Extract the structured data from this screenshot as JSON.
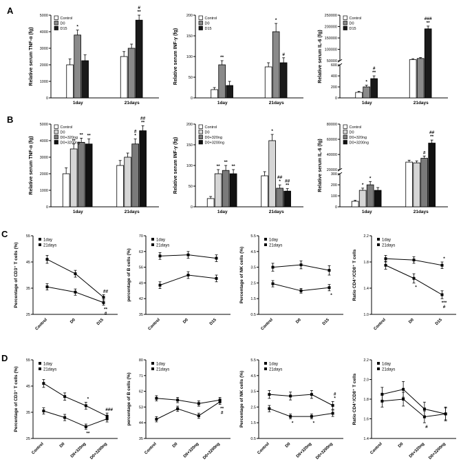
{
  "panels": [
    {
      "label": "A"
    },
    {
      "label": "B"
    },
    {
      "label": "C"
    },
    {
      "label": "D"
    }
  ],
  "chart_data": [
    {
      "panel": "A",
      "type": "bar",
      "ylabel": "Relative serum TNF-α (fg)",
      "categories": [
        "1day",
        "21days"
      ],
      "ylim": [
        0,
        5000
      ],
      "yticks": [
        0,
        1000,
        2000,
        3000,
        4000,
        5000
      ],
      "legend_position": "top-left",
      "series": [
        {
          "name": "Control",
          "color": "#ffffff",
          "values": [
            2000,
            2500
          ],
          "errors": [
            350,
            300
          ],
          "annotations": [
            "",
            ""
          ]
        },
        {
          "name": "D0",
          "color": "#8a8a8a",
          "values": [
            3800,
            3000
          ],
          "errors": [
            300,
            250
          ],
          "annotations": [
            "*",
            ""
          ]
        },
        {
          "name": "D15",
          "color": "#1a1a1a",
          "values": [
            2250,
            4700
          ],
          "errors": [
            350,
            300
          ],
          "annotations": [
            "",
            "#\n**"
          ]
        }
      ]
    },
    {
      "panel": "A",
      "type": "bar",
      "ylabel": "Relative serum INF-γ (fg)",
      "categories": [
        "1day",
        "21days"
      ],
      "ylim": [
        0,
        200
      ],
      "yticks": [
        0,
        50,
        100,
        150,
        200
      ],
      "legend_position": "top-left",
      "series": [
        {
          "name": "Control",
          "color": "#ffffff",
          "values": [
            20,
            75
          ],
          "errors": [
            5,
            10
          ],
          "annotations": [
            "",
            ""
          ]
        },
        {
          "name": "D0",
          "color": "#8a8a8a",
          "values": [
            80,
            160
          ],
          "errors": [
            10,
            20
          ],
          "annotations": [
            "**",
            "*"
          ]
        },
        {
          "name": "D15",
          "color": "#1a1a1a",
          "values": [
            30,
            85
          ],
          "errors": [
            10,
            12
          ],
          "annotations": [
            "",
            "#"
          ]
        }
      ]
    },
    {
      "panel": "A",
      "type": "bar",
      "ylabel": "Relative serum IL-6 (fg)",
      "categories": [
        "1day",
        "21days"
      ],
      "broken_axis": {
        "lower": [
          0,
          600
        ],
        "upper": [
          50000,
          250000
        ],
        "lower_ticks": [
          0,
          200,
          400,
          600
        ],
        "upper_ticks": [
          50000,
          100000,
          150000,
          200000,
          250000
        ],
        "lower_frac": 0.42
      },
      "legend_position": "top-left",
      "series": [
        {
          "name": "Control",
          "color": "#ffffff",
          "values": [
            100,
            55000
          ],
          "errors": [
            20,
            4000
          ],
          "annotations": [
            "",
            ""
          ]
        },
        {
          "name": "D0",
          "color": "#8a8a8a",
          "values": [
            200,
            60000
          ],
          "errors": [
            30,
            4000
          ],
          "annotations": [
            "*",
            ""
          ]
        },
        {
          "name": "D15",
          "color": "#1a1a1a",
          "values": [
            350,
            190000
          ],
          "errors": [
            50,
            12000
          ],
          "annotations": [
            "#\n**",
            "###\n**"
          ]
        }
      ]
    },
    {
      "panel": "B",
      "type": "bar",
      "ylabel": "Relative serum TNF-α (fg)",
      "categories": [
        "1day",
        "21days"
      ],
      "ylim": [
        0,
        5000
      ],
      "yticks": [
        0,
        1000,
        2000,
        3000,
        4000,
        5000
      ],
      "legend_position": "top-left",
      "series": [
        {
          "name": "Control",
          "color": "#ffffff",
          "values": [
            2000,
            2500
          ],
          "errors": [
            350,
            300
          ],
          "annotations": [
            "",
            ""
          ]
        },
        {
          "name": "D0",
          "color": "#d6d6d6",
          "values": [
            3500,
            3000
          ],
          "errors": [
            300,
            250
          ],
          "annotations": [
            "**",
            ""
          ]
        },
        {
          "name": "D0+320ng",
          "color": "#7a7a7a",
          "values": [
            3900,
            3800
          ],
          "errors": [
            250,
            300
          ],
          "annotations": [
            "**",
            "#\n*"
          ]
        },
        {
          "name": "D0+3200ng",
          "color": "#111111",
          "values": [
            3800,
            4600
          ],
          "errors": [
            300,
            300
          ],
          "annotations": [
            "**",
            "##\n**"
          ]
        }
      ]
    },
    {
      "panel": "B",
      "type": "bar",
      "ylabel": "Relative serum INF-γ (fg)",
      "categories": [
        "1day",
        "21days"
      ],
      "ylim": [
        0,
        200
      ],
      "yticks": [
        0,
        50,
        100,
        150,
        200
      ],
      "legend_position": "top-left",
      "series": [
        {
          "name": "Control",
          "color": "#ffffff",
          "values": [
            20,
            75
          ],
          "errors": [
            5,
            10
          ],
          "annotations": [
            "",
            ""
          ]
        },
        {
          "name": "D0",
          "color": "#d6d6d6",
          "values": [
            80,
            160
          ],
          "errors": [
            10,
            15
          ],
          "annotations": [
            "**",
            "*"
          ]
        },
        {
          "name": "D0+320ng",
          "color": "#7a7a7a",
          "values": [
            88,
            45
          ],
          "errors": [
            12,
            8
          ],
          "annotations": [
            "**",
            "##\n*"
          ]
        },
        {
          "name": "D0+3200ng",
          "color": "#111111",
          "values": [
            80,
            38
          ],
          "errors": [
            10,
            6
          ],
          "annotations": [
            "**",
            "##\n**"
          ]
        }
      ]
    },
    {
      "panel": "B",
      "type": "bar",
      "ylabel": "Relative serum IL-6 (fg)",
      "categories": [
        "1day",
        "21days"
      ],
      "broken_axis": {
        "lower": [
          0,
          300
        ],
        "upper": [
          20000,
          80000
        ],
        "lower_ticks": [
          0,
          100,
          200,
          300
        ],
        "upper_ticks": [
          20000,
          40000,
          60000,
          80000
        ],
        "lower_frac": 0.42
      },
      "legend_position": "top-left",
      "series": [
        {
          "name": "Control",
          "color": "#ffffff",
          "values": [
            50,
            30000
          ],
          "errors": [
            10,
            2500
          ],
          "annotations": [
            "",
            ""
          ]
        },
        {
          "name": "D0",
          "color": "#d6d6d6",
          "values": [
            150,
            29000
          ],
          "errors": [
            20,
            2500
          ],
          "annotations": [
            "*",
            ""
          ]
        },
        {
          "name": "D0+320ng",
          "color": "#7a7a7a",
          "values": [
            200,
            35000
          ],
          "errors": [
            30,
            3000
          ],
          "annotations": [
            "*",
            "#"
          ]
        },
        {
          "name": "D0+3200ng",
          "color": "#111111",
          "values": [
            150,
            55000
          ],
          "errors": [
            25,
            4000
          ],
          "annotations": [
            "",
            "##\n**"
          ]
        }
      ]
    },
    {
      "panel": "C",
      "type": "line",
      "ylabel": "Percentage of CD3⁺ T cells (%)",
      "categories": [
        "Control",
        "D0",
        "D15"
      ],
      "ylim": [
        25,
        55
      ],
      "yticks": [
        25,
        35,
        45,
        55
      ],
      "legend_position": "top-left",
      "series": [
        {
          "name": "1day",
          "values": [
            46,
            40.5,
            31.5
          ],
          "errors": [
            1.5,
            1.3,
            1.0
          ],
          "annotations": [
            "",
            "",
            "##"
          ]
        },
        {
          "name": "21days",
          "values": [
            35.5,
            33.5,
            29.5
          ],
          "errors": [
            1.2,
            1.2,
            1.0
          ],
          "annotations": [
            "",
            "",
            "**\n#"
          ]
        }
      ]
    },
    {
      "panel": "C",
      "type": "line",
      "ylabel": "percentage of B cells (%)",
      "categories": [
        "Control",
        "D0",
        "D15"
      ],
      "ylim": [
        35,
        70
      ],
      "yticks": [
        35,
        42,
        49,
        56,
        63,
        70
      ],
      "legend_position": "top-left",
      "series": [
        {
          "name": "1day",
          "values": [
            61,
            61.5,
            60
          ],
          "errors": [
            1.5,
            1.5,
            1.5
          ],
          "annotations": [
            "",
            "",
            ""
          ]
        },
        {
          "name": "21days",
          "values": [
            48,
            52.5,
            51
          ],
          "errors": [
            1.5,
            1.5,
            1.5
          ],
          "annotations": [
            "",
            "",
            ""
          ]
        }
      ]
    },
    {
      "panel": "C",
      "type": "line",
      "ylabel": "Percentage of NK cells (%)",
      "categories": [
        "Control",
        "D0",
        "D15"
      ],
      "ylim": [
        0.5,
        5.5
      ],
      "yticks": [
        0.5,
        1.5,
        2.5,
        3.5,
        4.5,
        5.5
      ],
      "legend_position": "top-left",
      "series": [
        {
          "name": "1day",
          "values": [
            3.5,
            3.65,
            3.3
          ],
          "errors": [
            0.25,
            0.25,
            0.3
          ],
          "annotations": [
            "",
            "",
            ""
          ]
        },
        {
          "name": "21days",
          "values": [
            2.45,
            2.0,
            2.2
          ],
          "errors": [
            0.2,
            0.15,
            0.2
          ],
          "annotations": [
            "",
            "",
            "*"
          ]
        }
      ]
    },
    {
      "panel": "C",
      "type": "line",
      "ylabel": "Ratio CD4⁺/CD8⁺ T cells",
      "categories": [
        "Control",
        "D0",
        "D15"
      ],
      "ylim": [
        1.0,
        2.2
      ],
      "yticks": [
        1.0,
        1.4,
        1.8,
        2.2
      ],
      "ytick_labels": [
        "1.0",
        "1.4",
        "1.8",
        "2.2"
      ],
      "legend_position": "top-left",
      "series": [
        {
          "name": "1day",
          "values": [
            1.85,
            1.83,
            1.75
          ],
          "errors": [
            0.05,
            0.05,
            0.05
          ],
          "annotations": [
            "",
            "",
            "*"
          ]
        },
        {
          "name": "21days",
          "values": [
            1.75,
            1.55,
            1.3
          ],
          "errors": [
            0.06,
            0.07,
            0.06
          ],
          "annotations": [
            "",
            "*",
            "***\n#"
          ]
        }
      ]
    },
    {
      "panel": "D",
      "type": "line",
      "ylabel": "Percentage of CD3⁺ T cells (%)",
      "categories": [
        "Control",
        "D0",
        "D0+320ng",
        "D0+3200ng"
      ],
      "ylim": [
        25,
        55
      ],
      "yticks": [
        25,
        35,
        45,
        55
      ],
      "legend_position": "top-left",
      "series": [
        {
          "name": "1day",
          "values": [
            46,
            41,
            37.5,
            33.5
          ],
          "errors": [
            1.5,
            1.4,
            1.3,
            1.2
          ],
          "annotations": [
            "",
            "",
            "*",
            "###"
          ]
        },
        {
          "name": "21days",
          "values": [
            35.5,
            33,
            29.5,
            32.5
          ],
          "errors": [
            1.2,
            1.2,
            1.0,
            1.2
          ],
          "annotations": [
            "",
            "",
            "**",
            ""
          ]
        }
      ]
    },
    {
      "panel": "D",
      "type": "line",
      "ylabel": "percentage of B cells (%)",
      "categories": [
        "Control",
        "D0",
        "D0+320ng",
        "D0+3200ng"
      ],
      "ylim": [
        35,
        80
      ],
      "yticks": [
        35,
        44,
        53,
        62,
        71,
        80
      ],
      "legend_position": "top-left",
      "series": [
        {
          "name": "1day",
          "values": [
            58,
            57,
            55,
            57
          ],
          "errors": [
            1.5,
            1.5,
            1.5,
            1.5
          ],
          "annotations": [
            "",
            "",
            "",
            ""
          ]
        },
        {
          "name": "21days",
          "values": [
            46,
            52,
            48,
            56
          ],
          "errors": [
            1.5,
            1.5,
            1.5,
            1.5
          ],
          "annotations": [
            "",
            "",
            "",
            "**\n#"
          ]
        }
      ]
    },
    {
      "panel": "D",
      "type": "line",
      "ylabel": "Percentage of NK cells (%)",
      "categories": [
        "Control",
        "D0",
        "D0+320ng",
        "D0+3200ng"
      ],
      "ylim": [
        0.5,
        5.5
      ],
      "yticks": [
        0.5,
        1.5,
        2.5,
        3.5,
        4.5,
        5.5
      ],
      "legend_position": "top-left",
      "series": [
        {
          "name": "1day",
          "values": [
            3.3,
            3.2,
            3.3,
            2.6
          ],
          "errors": [
            0.25,
            0.25,
            0.25,
            0.25
          ],
          "annotations": [
            "",
            "",
            "",
            "#\n*"
          ]
        },
        {
          "name": "21days",
          "values": [
            2.4,
            1.9,
            1.9,
            2.1
          ],
          "errors": [
            0.2,
            0.15,
            0.15,
            0.2
          ],
          "annotations": [
            "",
            "*",
            "*",
            ""
          ]
        }
      ]
    },
    {
      "panel": "D",
      "type": "line",
      "ylabel": "Ratio CD4⁺/CD8⁺ T cells",
      "categories": [
        "Control",
        "D0",
        "D0+320ng",
        "D0+3200ng"
      ],
      "ylim": [
        1.4,
        2.2
      ],
      "yticks": [
        1.4,
        1.6,
        1.8,
        2.0,
        2.2
      ],
      "ytick_labels": [
        "1.4",
        "1.6",
        "1.8",
        "2.0",
        "2.2"
      ],
      "legend_position": "top-left",
      "series": [
        {
          "name": "1day",
          "values": [
            1.85,
            1.9,
            1.7,
            1.65
          ],
          "errors": [
            0.07,
            0.08,
            0.07,
            0.06
          ],
          "annotations": [
            "",
            "",
            "",
            ""
          ]
        },
        {
          "name": "21days",
          "values": [
            1.78,
            1.8,
            1.62,
            1.65
          ],
          "errors": [
            0.06,
            0.07,
            0.06,
            0.07
          ],
          "annotations": [
            "",
            "",
            "#",
            ""
          ]
        }
      ]
    }
  ]
}
